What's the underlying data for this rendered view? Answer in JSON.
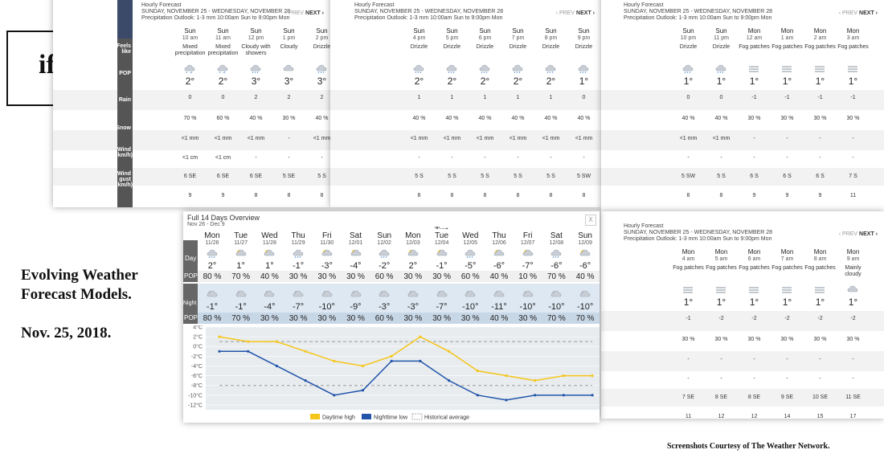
{
  "left_text": {
    "if_label": "if...",
    "title_line1": "Evolving Weather",
    "title_line2": "Forecast Models.",
    "date": "Nov. 25, 2018.",
    "courtesy": "Screenshots Courtesy of The Weather Network."
  },
  "hourly_header": {
    "title": "Hourly Forecast",
    "range": "SUNDAY, NOVEMBER 25 - WEDNESDAY, NOVEMBER 28",
    "outlook": "Precipitation Outlook: 1-3 mm 10:00am Sun to 9:00pm Mon",
    "prev": "‹ PREV",
    "next": "NEXT ›"
  },
  "row_labels": {
    "feels": "Feels like",
    "pop": "POP",
    "rain": "Rain",
    "snow": "Snow",
    "wind": "Wind (km/h)",
    "gust": "Wind gust (km/h)"
  },
  "panel1": [
    {
      "day": "Sun",
      "time": "10 am",
      "desc": "Mixed precipitation",
      "icon": "mixed-icon",
      "temp": "2°",
      "feels": "0",
      "pop": "70 %",
      "rain": "<1 mm",
      "snow": "<1 cm",
      "wind": "6 SE",
      "gust": "9"
    },
    {
      "day": "Sun",
      "time": "11 am",
      "desc": "Mixed precipitation",
      "icon": "mixed-icon",
      "temp": "2°",
      "feels": "0",
      "pop": "60 %",
      "rain": "<1 mm",
      "snow": "<1 cm",
      "wind": "6 SE",
      "gust": "9"
    },
    {
      "day": "Sun",
      "time": "12 pm",
      "desc": "Cloudy with showers",
      "icon": "showers-icon",
      "temp": "3°",
      "feels": "2",
      "pop": "40 %",
      "rain": "<1 mm",
      "snow": "-",
      "wind": "6 SE",
      "gust": "8"
    },
    {
      "day": "Sun",
      "time": "1 pm",
      "desc": "Cloudy",
      "icon": "cloud-icon",
      "temp": "3°",
      "feels": "2",
      "pop": "30 %",
      "rain": "-",
      "snow": "-",
      "wind": "5 SE",
      "gust": "8"
    },
    {
      "day": "Sun",
      "time": "2 pm",
      "desc": "Drizzle",
      "icon": "drizzle-icon",
      "temp": "3°",
      "feels": "2",
      "pop": "40 %",
      "rain": "<1 mm",
      "snow": "-",
      "wind": "5 S",
      "gust": "8"
    },
    {
      "day": "Sun",
      "time": "3 pm",
      "desc": "Drizzle",
      "icon": "drizzle-icon",
      "temp": "2°",
      "feels": "0",
      "pop": "40 %",
      "rain": "<1 mm",
      "snow": "-",
      "wind": "5 S",
      "gust": "9"
    }
  ],
  "panel2": [
    {
      "day": "Sun",
      "time": "4 pm",
      "desc": "Drizzle",
      "icon": "drizzle-icon",
      "temp": "2°",
      "feels": "1",
      "pop": "40 %",
      "rain": "<1 mm",
      "snow": "-",
      "wind": "5 S",
      "gust": "8"
    },
    {
      "day": "Sun",
      "time": "5 pm",
      "desc": "Drizzle",
      "icon": "drizzle-icon",
      "temp": "2°",
      "feels": "1",
      "pop": "40 %",
      "rain": "<1 mm",
      "snow": "-",
      "wind": "5 S",
      "gust": "8"
    },
    {
      "day": "Sun",
      "time": "6 pm",
      "desc": "Drizzle",
      "icon": "drizzle-icon",
      "temp": "2°",
      "feels": "1",
      "pop": "40 %",
      "rain": "<1 mm",
      "snow": "-",
      "wind": "5 S",
      "gust": "8"
    },
    {
      "day": "Sun",
      "time": "7 pm",
      "desc": "Drizzle",
      "icon": "drizzle-icon",
      "temp": "2°",
      "feels": "1",
      "pop": "40 %",
      "rain": "<1 mm",
      "snow": "-",
      "wind": "5 S",
      "gust": "8"
    },
    {
      "day": "Sun",
      "time": "8 pm",
      "desc": "Drizzle",
      "icon": "drizzle-icon",
      "temp": "2°",
      "feels": "1",
      "pop": "40 %",
      "rain": "<1 mm",
      "snow": "-",
      "wind": "5 S",
      "gust": "8"
    },
    {
      "day": "Sun",
      "time": "9 pm",
      "desc": "Drizzle",
      "icon": "drizzle-icon",
      "temp": "1°",
      "feels": "0",
      "pop": "40 %",
      "rain": "<1 mm",
      "snow": "-",
      "wind": "5 SW",
      "gust": "8"
    }
  ],
  "panel3": [
    {
      "day": "Sun",
      "time": "10 pm",
      "desc": "Drizzle",
      "icon": "drizzle-icon",
      "temp": "1°",
      "feels": "0",
      "pop": "40 %",
      "rain": "<1 mm",
      "snow": "-",
      "wind": "5 SW",
      "gust": "8"
    },
    {
      "day": "Sun",
      "time": "11 pm",
      "desc": "Drizzle",
      "icon": "drizzle-icon",
      "temp": "1°",
      "feels": "0",
      "pop": "40 %",
      "rain": "<1 mm",
      "snow": "-",
      "wind": "5 S",
      "gust": "8"
    },
    {
      "day": "Mon",
      "time": "12 am",
      "desc": "Fog patches",
      "icon": "fog-icon",
      "temp": "1°",
      "feels": "-1",
      "pop": "30 %",
      "rain": "-",
      "snow": "-",
      "wind": "6 S",
      "gust": "9"
    },
    {
      "day": "Mon",
      "time": "1 am",
      "desc": "Fog patches",
      "icon": "fog-icon",
      "temp": "1°",
      "feels": "-1",
      "pop": "30 %",
      "rain": "-",
      "snow": "-",
      "wind": "6 S",
      "gust": "9"
    },
    {
      "day": "Mon",
      "time": "2 am",
      "desc": "Fog patches",
      "icon": "fog-icon",
      "temp": "1°",
      "feels": "-1",
      "pop": "30 %",
      "rain": "-",
      "snow": "-",
      "wind": "6 S",
      "gust": "9"
    },
    {
      "day": "Mon",
      "time": "3 am",
      "desc": "Fog patches",
      "icon": "fog-icon",
      "temp": "1°",
      "feels": "-1",
      "pop": "30 %",
      "rain": "-",
      "snow": "-",
      "wind": "7 S",
      "gust": "11"
    }
  ],
  "panel4": [
    {
      "day": "Mon",
      "time": "4 am",
      "desc": "Fog patches",
      "icon": "fog-icon",
      "temp": "1°",
      "feels": "-1",
      "pop": "30 %",
      "rain": "-",
      "snow": "-",
      "wind": "7 SE",
      "gust": "11"
    },
    {
      "day": "Mon",
      "time": "5 am",
      "desc": "Fog patches",
      "icon": "fog-icon",
      "temp": "1°",
      "feels": "-2",
      "pop": "30 %",
      "rain": "-",
      "snow": "-",
      "wind": "8 SE",
      "gust": "12"
    },
    {
      "day": "Mon",
      "time": "6 am",
      "desc": "Fog patches",
      "icon": "fog-icon",
      "temp": "1°",
      "feels": "-2",
      "pop": "30 %",
      "rain": "-",
      "snow": "-",
      "wind": "8 SE",
      "gust": "12"
    },
    {
      "day": "Mon",
      "time": "7 am",
      "desc": "Fog patches",
      "icon": "fog-icon",
      "temp": "1°",
      "feels": "-2",
      "pop": "30 %",
      "rain": "-",
      "snow": "-",
      "wind": "9 SE",
      "gust": "14"
    },
    {
      "day": "Mon",
      "time": "8 am",
      "desc": "Fog patches",
      "icon": "fog-icon",
      "temp": "1°",
      "feels": "-2",
      "pop": "30 %",
      "rain": "-",
      "snow": "-",
      "wind": "10 SE",
      "gust": "15"
    },
    {
      "day": "Mon",
      "time": "9 am",
      "desc": "Mainly cloudy",
      "icon": "cloud-icon",
      "temp": "1°",
      "feels": "-2",
      "pop": "30 %",
      "rain": "-",
      "snow": "-",
      "wind": "11 SE",
      "gust": "17"
    }
  ],
  "overview": {
    "title": "Full 14 Days Overview",
    "range": "Nov 26 - Dec 9",
    "close": "X",
    "stray_label": "Text",
    "day_label": "Day",
    "pop_label": "POP",
    "night_label": "Night",
    "days": [
      {
        "day": "Mon",
        "date": "11/26",
        "high": "2°",
        "high_pop": "80 %",
        "low": "-1°",
        "low_pop": "80 %"
      },
      {
        "day": "Tue",
        "date": "11/27",
        "high": "1°",
        "high_pop": "70 %",
        "low": "-1°",
        "low_pop": "70 %"
      },
      {
        "day": "Wed",
        "date": "11/28",
        "high": "1°",
        "high_pop": "40 %",
        "low": "-4°",
        "low_pop": "30 %"
      },
      {
        "day": "Thu",
        "date": "11/29",
        "high": "-1°",
        "high_pop": "30 %",
        "low": "-7°",
        "low_pop": "30 %"
      },
      {
        "day": "Fri",
        "date": "11/30",
        "high": "-3°",
        "high_pop": "30 %",
        "low": "-10°",
        "low_pop": "30 %"
      },
      {
        "day": "Sat",
        "date": "12/01",
        "high": "-4°",
        "high_pop": "30 %",
        "low": "-9°",
        "low_pop": "30 %"
      },
      {
        "day": "Sun",
        "date": "12/02",
        "high": "-2°",
        "high_pop": "60 %",
        "low": "-3°",
        "low_pop": "60 %"
      },
      {
        "day": "Mon",
        "date": "12/03",
        "high": "2°",
        "high_pop": "30 %",
        "low": "-3°",
        "low_pop": "30 %"
      },
      {
        "day": "Tue",
        "date": "12/04",
        "high": "-1°",
        "high_pop": "30 %",
        "low": "-7°",
        "low_pop": "30 %"
      },
      {
        "day": "Wed",
        "date": "12/05",
        "high": "-5°",
        "high_pop": "60 %",
        "low": "-10°",
        "low_pop": "30 %"
      },
      {
        "day": "Thu",
        "date": "12/06",
        "high": "-6°",
        "high_pop": "40 %",
        "low": "-11°",
        "low_pop": "40 %"
      },
      {
        "day": "Fri",
        "date": "12/07",
        "high": "-7°",
        "high_pop": "10 %",
        "low": "-10°",
        "low_pop": "30 %"
      },
      {
        "day": "Sat",
        "date": "12/08",
        "high": "-6°",
        "high_pop": "70 %",
        "low": "-10°",
        "low_pop": "70 %"
      },
      {
        "day": "Sun",
        "date": "12/09",
        "high": "-6°",
        "high_pop": "40 %",
        "low": "-10°",
        "low_pop": "70 %"
      }
    ],
    "legend": {
      "high": "Daytime high",
      "low": "Nighttime low",
      "avg": "Historical average"
    }
  },
  "chart_data": {
    "type": "line",
    "x": [
      "11/26",
      "11/27",
      "11/28",
      "11/29",
      "11/30",
      "12/01",
      "12/02",
      "12/03",
      "12/04",
      "12/05",
      "12/06",
      "12/07",
      "12/08",
      "12/09"
    ],
    "series": [
      {
        "name": "Daytime high",
        "color": "#f5c518",
        "values": [
          2,
          1,
          1,
          -1,
          -3,
          -4,
          -2,
          2,
          -1,
          -5,
          -6,
          -7,
          -6,
          -6
        ]
      },
      {
        "name": "Nighttime low",
        "color": "#2255aa",
        "values": [
          -1,
          -1,
          -4,
          -7,
          -10,
          -9,
          -3,
          -3,
          -7,
          -10,
          -11,
          -10,
          -10,
          -10
        ]
      },
      {
        "name": "Historical average",
        "values": [
          1,
          1,
          1,
          1,
          1,
          1,
          1,
          1,
          1,
          1,
          1,
          1,
          1,
          1
        ],
        "values_low": [
          -8,
          -8,
          -8,
          -8,
          -8,
          -8,
          -8,
          -8,
          -8,
          -8,
          -8,
          -8,
          -8,
          -8
        ]
      }
    ],
    "yticks": [
      "4°C",
      "2°C",
      "0°C",
      "-2°C",
      "-4°C",
      "-6°C",
      "-8°C",
      "-10°C",
      "-12°C"
    ],
    "ylim": [
      -13,
      4
    ],
    "grid": true,
    "legend_position": "bottom"
  }
}
